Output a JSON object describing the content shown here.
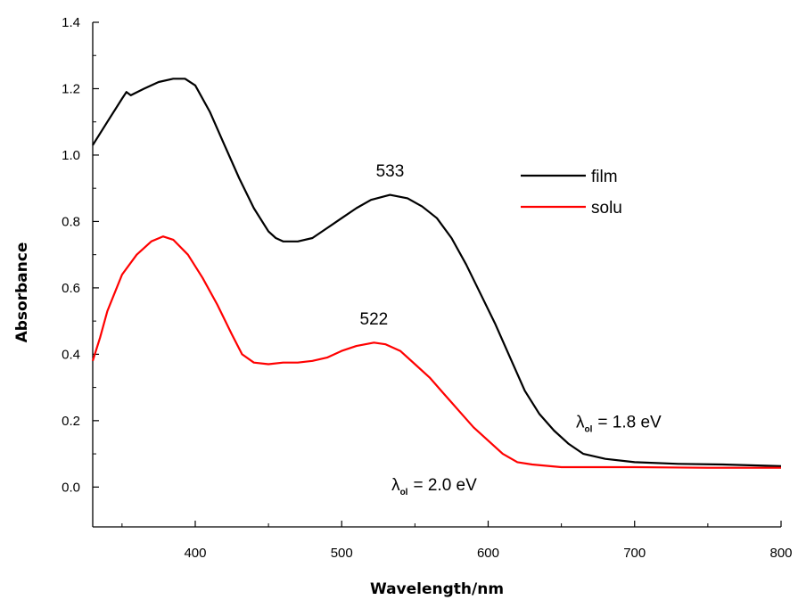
{
  "chart_data": {
    "type": "line",
    "xlabel": "Wavelength/nm",
    "ylabel": "Absorbance",
    "xlim": [
      330,
      800
    ],
    "ylim": [
      -0.12,
      1.4
    ],
    "x_ticks": [
      400,
      500,
      600,
      700,
      800
    ],
    "y_ticks": [
      "0.0",
      "0.2",
      "0.4",
      "0.6",
      "0.8",
      "1.0",
      "1.2",
      "1.4"
    ],
    "grid": false,
    "legend_position": "upper-right",
    "series": [
      {
        "name": "film",
        "color": "#000000",
        "points": [
          [
            330,
            1.03
          ],
          [
            340,
            1.1
          ],
          [
            350,
            1.17
          ],
          [
            353,
            1.19
          ],
          [
            356,
            1.18
          ],
          [
            365,
            1.2
          ],
          [
            375,
            1.22
          ],
          [
            385,
            1.23
          ],
          [
            393,
            1.23
          ],
          [
            400,
            1.21
          ],
          [
            410,
            1.13
          ],
          [
            420,
            1.03
          ],
          [
            430,
            0.93
          ],
          [
            440,
            0.84
          ],
          [
            450,
            0.77
          ],
          [
            455,
            0.75
          ],
          [
            460,
            0.74
          ],
          [
            470,
            0.74
          ],
          [
            480,
            0.75
          ],
          [
            490,
            0.78
          ],
          [
            500,
            0.81
          ],
          [
            510,
            0.84
          ],
          [
            520,
            0.865
          ],
          [
            533,
            0.88
          ],
          [
            545,
            0.87
          ],
          [
            555,
            0.845
          ],
          [
            565,
            0.81
          ],
          [
            575,
            0.75
          ],
          [
            585,
            0.67
          ],
          [
            595,
            0.58
          ],
          [
            605,
            0.49
          ],
          [
            615,
            0.39
          ],
          [
            625,
            0.29
          ],
          [
            635,
            0.22
          ],
          [
            645,
            0.17
          ],
          [
            655,
            0.13
          ],
          [
            665,
            0.1
          ],
          [
            680,
            0.085
          ],
          [
            700,
            0.075
          ],
          [
            730,
            0.07
          ],
          [
            760,
            0.068
          ],
          [
            800,
            0.063
          ]
        ]
      },
      {
        "name": "solu",
        "color": "#ff0000",
        "points": [
          [
            330,
            0.38
          ],
          [
            335,
            0.45
          ],
          [
            340,
            0.53
          ],
          [
            350,
            0.64
          ],
          [
            360,
            0.7
          ],
          [
            370,
            0.74
          ],
          [
            378,
            0.755
          ],
          [
            385,
            0.745
          ],
          [
            395,
            0.7
          ],
          [
            405,
            0.63
          ],
          [
            415,
            0.55
          ],
          [
            425,
            0.46
          ],
          [
            432,
            0.4
          ],
          [
            440,
            0.375
          ],
          [
            450,
            0.37
          ],
          [
            460,
            0.375
          ],
          [
            470,
            0.375
          ],
          [
            480,
            0.38
          ],
          [
            490,
            0.39
          ],
          [
            500,
            0.41
          ],
          [
            510,
            0.425
          ],
          [
            522,
            0.435
          ],
          [
            530,
            0.43
          ],
          [
            540,
            0.41
          ],
          [
            550,
            0.37
          ],
          [
            560,
            0.33
          ],
          [
            570,
            0.28
          ],
          [
            580,
            0.23
          ],
          [
            590,
            0.18
          ],
          [
            600,
            0.14
          ],
          [
            610,
            0.1
          ],
          [
            620,
            0.075
          ],
          [
            630,
            0.068
          ],
          [
            650,
            0.06
          ],
          [
            700,
            0.06
          ],
          [
            750,
            0.058
          ],
          [
            800,
            0.058
          ]
        ]
      }
    ],
    "annotations": [
      {
        "text": "533",
        "x": 533,
        "y": 0.935
      },
      {
        "text": "522",
        "x": 522,
        "y": 0.49
      },
      {
        "symbol": "λ",
        "sub": "ol",
        "rest": "= 1.8 eV",
        "x": 660,
        "y": 0.18
      },
      {
        "symbol": "λ",
        "sub": "ol",
        "rest": "= 2.0 eV",
        "x": 534,
        "y": -0.01
      }
    ]
  }
}
